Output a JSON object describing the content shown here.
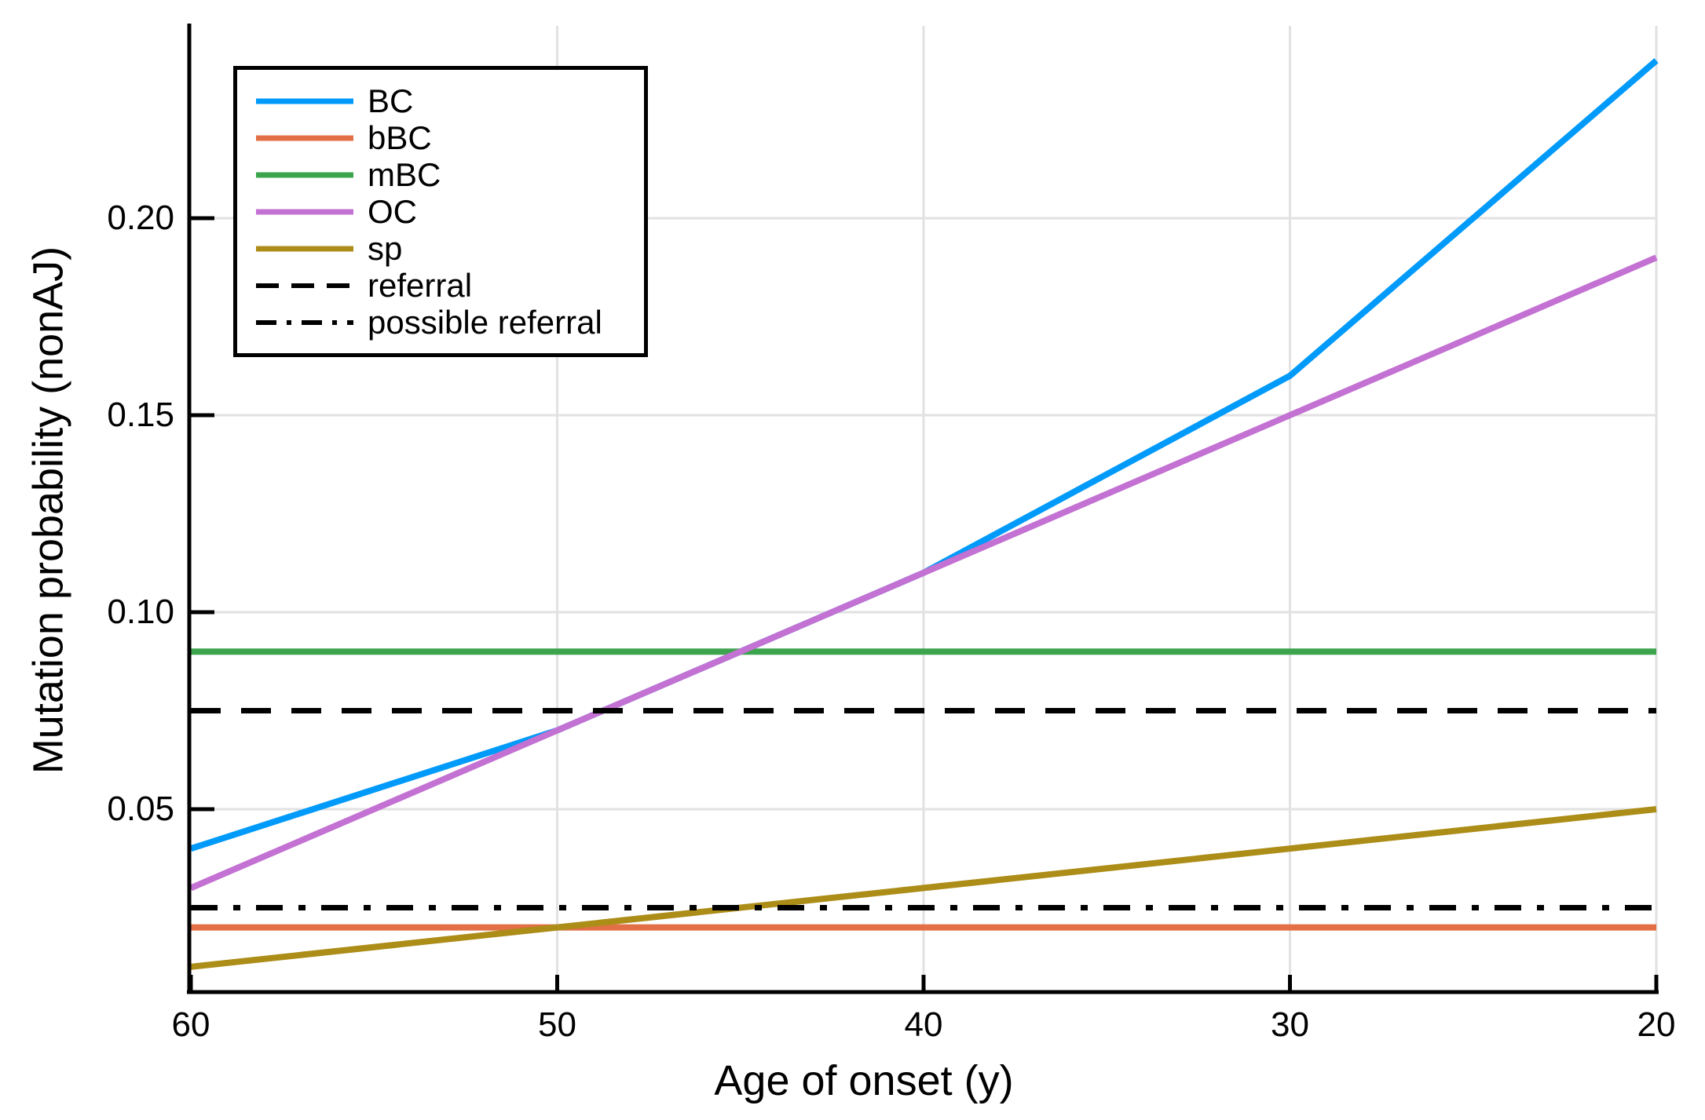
{
  "figure": {
    "background": "#ffffff",
    "grid_color": "#e2e2e2",
    "axis_color": "#000000"
  },
  "chart_data": {
    "type": "line",
    "title": "",
    "xlabel": "Age of onset (y)",
    "ylabel": "Mutation probability (nonAJ)",
    "x": [
      60,
      50,
      40,
      30,
      20
    ],
    "x_tick_labels": [
      "60",
      "50",
      "40",
      "30",
      "20"
    ],
    "x_tick_values": [
      60,
      50,
      40,
      30,
      20
    ],
    "y_tick_labels": [
      "0.05",
      "0.10",
      "0.15",
      "0.20"
    ],
    "y_tick_values": [
      0.05,
      0.1,
      0.15,
      0.2
    ],
    "xlim": [
      60,
      20
    ],
    "ylim": [
      0.004,
      0.249
    ],
    "x_axis_reversed": true,
    "grid": true,
    "legend_position": "top-left",
    "series": [
      {
        "name": "BC",
        "color": "#009AFA",
        "line_style": "solid",
        "values": [
          0.04,
          0.07,
          0.11,
          0.16,
          0.24
        ]
      },
      {
        "name": "bBC",
        "color": "#E26F46",
        "line_style": "solid",
        "values": [
          0.02,
          0.02,
          0.02,
          0.02,
          0.02
        ]
      },
      {
        "name": "mBC",
        "color": "#3DA44E",
        "line_style": "solid",
        "values": [
          0.09,
          0.09,
          0.09,
          0.09,
          0.09
        ]
      },
      {
        "name": "OC",
        "color": "#C371D2",
        "line_style": "solid",
        "values": [
          0.03,
          0.07,
          0.11,
          0.15,
          0.19
        ]
      },
      {
        "name": "sp",
        "color": "#AC8D18",
        "line_style": "solid",
        "values": [
          0.01,
          0.02,
          0.03,
          0.04,
          0.05
        ]
      },
      {
        "name": "referral",
        "color": "#000000",
        "line_style": "dashed",
        "values": [
          0.075,
          0.075,
          0.075,
          0.075,
          0.075
        ]
      },
      {
        "name": "possible referral",
        "color": "#000000",
        "line_style": "dashdot",
        "values": [
          0.025,
          0.025,
          0.025,
          0.025,
          0.025
        ]
      }
    ]
  }
}
